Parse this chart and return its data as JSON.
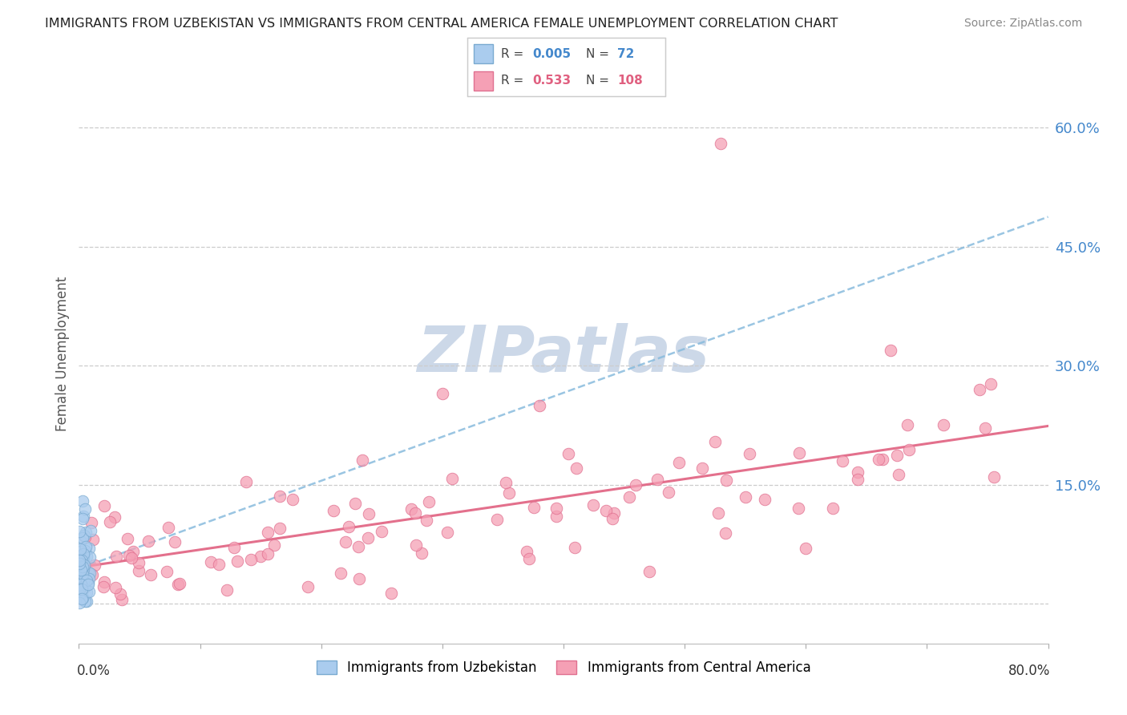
{
  "title": "IMMIGRANTS FROM UZBEKISTAN VS IMMIGRANTS FROM CENTRAL AMERICA FEMALE UNEMPLOYMENT CORRELATION CHART",
  "source": "Source: ZipAtlas.com",
  "ylabel": "Female Unemployment",
  "right_ytick_vals": [
    0.0,
    0.15,
    0.3,
    0.45,
    0.6
  ],
  "right_ytick_labels": [
    "",
    "15.0%",
    "30.0%",
    "45.0%",
    "60.0%"
  ],
  "uzbekistan_color": "#aaccee",
  "uzbekistan_edge": "#7aaad0",
  "central_america_color": "#f5a0b5",
  "central_america_edge": "#e07090",
  "trend_uzbekistan_color": "#88bbdd",
  "trend_central_america_color": "#e06080",
  "background_color": "#ffffff",
  "watermark_color": "#ccd8e8",
  "grid_color": "#cccccc",
  "title_color": "#222222",
  "axis_label_color": "#555555",
  "right_tick_color": "#4488cc",
  "xlim": [
    0.0,
    0.8
  ],
  "ylim": [
    -0.05,
    0.68
  ],
  "figsize": [
    14.06,
    8.92
  ],
  "dpi": 100,
  "legend_R1": "0.005",
  "legend_N1": "72",
  "legend_R2": "0.533",
  "legend_N2": "108",
  "legend_color1": "#4488cc",
  "legend_color2": "#e06080"
}
